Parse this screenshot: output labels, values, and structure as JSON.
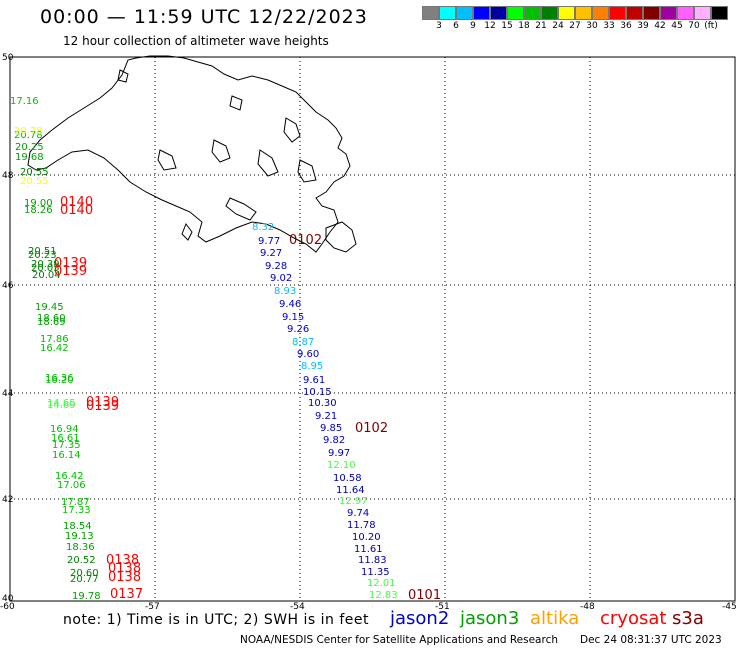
{
  "header": {
    "title": "00:00 — 11:59 UTC 12/22/2023",
    "subtitle": "12 hour collection of altimeter wave heights"
  },
  "colorbar": {
    "unit_label": "(ft)",
    "swatches": [
      {
        "color": "#808080",
        "label": ""
      },
      {
        "color": "#00ffff",
        "label": "3"
      },
      {
        "color": "#00bfff",
        "label": "6"
      },
      {
        "color": "#0000ff",
        "label": "9"
      },
      {
        "color": "#0000a0",
        "label": "12"
      },
      {
        "color": "#00ff00",
        "label": "15"
      },
      {
        "color": "#00c000",
        "label": "18"
      },
      {
        "color": "#008000",
        "label": "21"
      },
      {
        "color": "#ffff00",
        "label": "24"
      },
      {
        "color": "#ffc000",
        "label": "27"
      },
      {
        "color": "#ff8000",
        "label": "30"
      },
      {
        "color": "#ff0000",
        "label": "33"
      },
      {
        "color": "#c00000",
        "label": "36"
      },
      {
        "color": "#800000",
        "label": "39"
      },
      {
        "color": "#a000a0",
        "label": "42"
      },
      {
        "color": "#ff60ff",
        "label": "45"
      },
      {
        "color": "#ffb0ff",
        "label": "70"
      },
      {
        "color": "#000000",
        "label": ""
      }
    ]
  },
  "axes": {
    "lon_ticks": [
      "-60",
      "-57",
      "-54",
      "-51",
      "-48",
      "-45"
    ],
    "lat_ticks": [
      "50",
      "48",
      "46",
      "44",
      "42",
      "40"
    ]
  },
  "observations": [
    {
      "text": "17.16",
      "color": "#00c000"
    },
    {
      "text": "20.78",
      "color": "#00c000"
    },
    {
      "text": "20.78",
      "color": "#ffff00"
    },
    {
      "text": "20.25",
      "color": "#00a000"
    },
    {
      "text": "19.68",
      "color": "#00a000"
    },
    {
      "text": "20.55",
      "color": "#008000"
    },
    {
      "text": "20.55",
      "color": "#ffff00"
    },
    {
      "text": "19.00",
      "color": "#00a000"
    },
    {
      "text": "18.26",
      "color": "#00a000"
    },
    {
      "text": "0140",
      "color": "#ff0000"
    },
    {
      "text": "0140",
      "color": "#ff0000"
    },
    {
      "text": "20.51",
      "color": "#008000"
    },
    {
      "text": "20.23",
      "color": "#008000"
    },
    {
      "text": "20.39",
      "color": "#008000"
    },
    {
      "text": "20.05",
      "color": "#008000"
    },
    {
      "text": "20.04",
      "color": "#008000"
    },
    {
      "text": "0139",
      "color": "#ff0000"
    },
    {
      "text": "0139",
      "color": "#ff0000"
    },
    {
      "text": "19.45",
      "color": "#00a000"
    },
    {
      "text": "18.60",
      "color": "#00a000"
    },
    {
      "text": "18.69",
      "color": "#00a000"
    },
    {
      "text": "17.86",
      "color": "#00c000"
    },
    {
      "text": "16.42",
      "color": "#00c000"
    },
    {
      "text": "16.36",
      "color": "#00c000"
    },
    {
      "text": "16.20",
      "color": "#00c000"
    },
    {
      "text": "14.65",
      "color": "#40ff40"
    },
    {
      "text": "14.69",
      "color": "#40ff40"
    },
    {
      "text": "0139",
      "color": "#ff0000"
    },
    {
      "text": "0139",
      "color": "#ff0000"
    },
    {
      "text": "16.94",
      "color": "#00c000"
    },
    {
      "text": "16.61",
      "color": "#00c000"
    },
    {
      "text": "17.35",
      "color": "#00c000"
    },
    {
      "text": "16.14",
      "color": "#00c000"
    },
    {
      "text": "16.42",
      "color": "#00c000"
    },
    {
      "text": "17.06",
      "color": "#00c000"
    },
    {
      "text": "17.87",
      "color": "#00c000"
    },
    {
      "text": "17.33",
      "color": "#00c000"
    },
    {
      "text": "18.54",
      "color": "#00a000"
    },
    {
      "text": "19.13",
      "color": "#00a000"
    },
    {
      "text": "18.36",
      "color": "#00a000"
    },
    {
      "text": "20.52",
      "color": "#008000"
    },
    {
      "text": "0138",
      "color": "#ff0000"
    },
    {
      "text": "20.60",
      "color": "#008000"
    },
    {
      "text": "0138",
      "color": "#ff0000"
    },
    {
      "text": "20.77",
      "color": "#008000"
    },
    {
      "text": "0138",
      "color": "#ff0000"
    },
    {
      "text": "19.78",
      "color": "#00a000"
    },
    {
      "text": "0137",
      "color": "#ff0000"
    },
    {
      "text": "8.32",
      "color": "#00bfff"
    },
    {
      "text": "9.77",
      "color": "#0000c8"
    },
    {
      "text": "0102",
      "color": "#800000"
    },
    {
      "text": "9.27",
      "color": "#0000c8"
    },
    {
      "text": "9.28",
      "color": "#0000c8"
    },
    {
      "text": "9.02",
      "color": "#0000c8"
    },
    {
      "text": "8.93",
      "color": "#00bfff"
    },
    {
      "text": "9.46",
      "color": "#0000c8"
    },
    {
      "text": "9.15",
      "color": "#0000c8"
    },
    {
      "text": "9.26",
      "color": "#0000c8"
    },
    {
      "text": "8.87",
      "color": "#00bfff"
    },
    {
      "text": "9.60",
      "color": "#0000c8"
    },
    {
      "text": "8.95",
      "color": "#00bfff"
    },
    {
      "text": "9.61",
      "color": "#0000c8"
    },
    {
      "text": "10.15",
      "color": "#0000a0"
    },
    {
      "text": "10.30",
      "color": "#0000a0"
    },
    {
      "text": "9.21",
      "color": "#0000c8"
    },
    {
      "text": "9.85",
      "color": "#0000c8"
    },
    {
      "text": "0102",
      "color": "#800000"
    },
    {
      "text": "9.82",
      "color": "#0000c8"
    },
    {
      "text": "9.97",
      "color": "#0000c8"
    },
    {
      "text": "12.10",
      "color": "#40ff40"
    },
    {
      "text": "10.58",
      "color": "#0000a0"
    },
    {
      "text": "11.64",
      "color": "#0000a0"
    },
    {
      "text": "12.97",
      "color": "#40ff40"
    },
    {
      "text": "9.74",
      "color": "#0000c8"
    },
    {
      "text": "11.78",
      "color": "#0000a0"
    },
    {
      "text": "10.20",
      "color": "#0000a0"
    },
    {
      "text": "11.61",
      "color": "#0000a0"
    },
    {
      "text": "11.83",
      "color": "#0000a0"
    },
    {
      "text": "11.35",
      "color": "#0000a0"
    },
    {
      "text": "12.01",
      "color": "#40ff40"
    },
    {
      "text": "12.83",
      "color": "#40ff40"
    },
    {
      "text": "0101",
      "color": "#800000"
    }
  ],
  "footer": {
    "note": "note:  1) Time is in UTC;  2) SWH is in feet",
    "credit": "NOAA/NESDIS Center for Satellite Applications and Research",
    "timestamp": "Dec 24 08:31:37 UTC 2023",
    "satellites": [
      {
        "name": "jason2",
        "color": "#0000c8"
      },
      {
        "name": "jason3",
        "color": "#00a000"
      },
      {
        "name": "altika",
        "color": "#ffa000"
      },
      {
        "name": "cryosat",
        "color": "#ff0000"
      },
      {
        "name": "s3a",
        "color": "#800000"
      }
    ]
  }
}
